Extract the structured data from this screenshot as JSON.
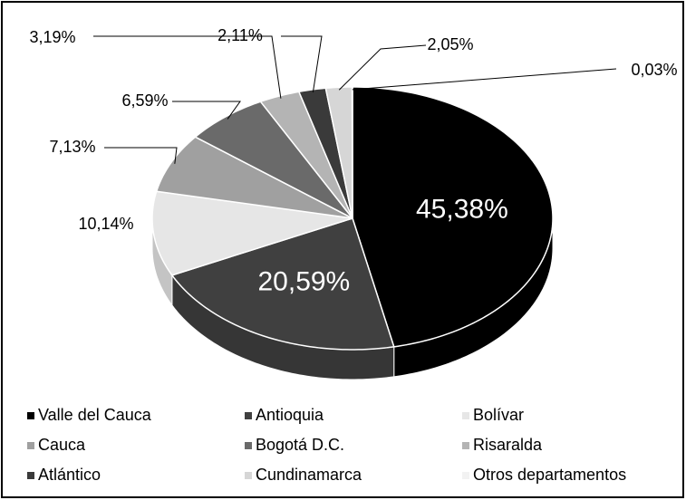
{
  "chart_data": {
    "type": "pie",
    "categories": [
      "Valle del Cauca",
      "Antioquia",
      "Bolívar",
      "Cauca",
      "Bogotá D.C.",
      "Risaralda",
      "Atlántico",
      "Cundinamarca",
      "Otros departamentos"
    ],
    "values": [
      45.38,
      20.59,
      10.14,
      7.13,
      6.59,
      3.19,
      2.11,
      2.05,
      0.03
    ],
    "value_labels": [
      "45,38%",
      "20,59%",
      "10,14%",
      "7,13%",
      "6,59%",
      "3,19%",
      "2,11%",
      "2,05%",
      "0,03%"
    ],
    "colors": [
      "#000000",
      "#404040",
      "#e6e6e6",
      "#a0a0a0",
      "#6a6a6a",
      "#b4b4b4",
      "#3a3a3a",
      "#d6d6d6",
      "#f2f2f2"
    ],
    "legend": "bottom"
  }
}
